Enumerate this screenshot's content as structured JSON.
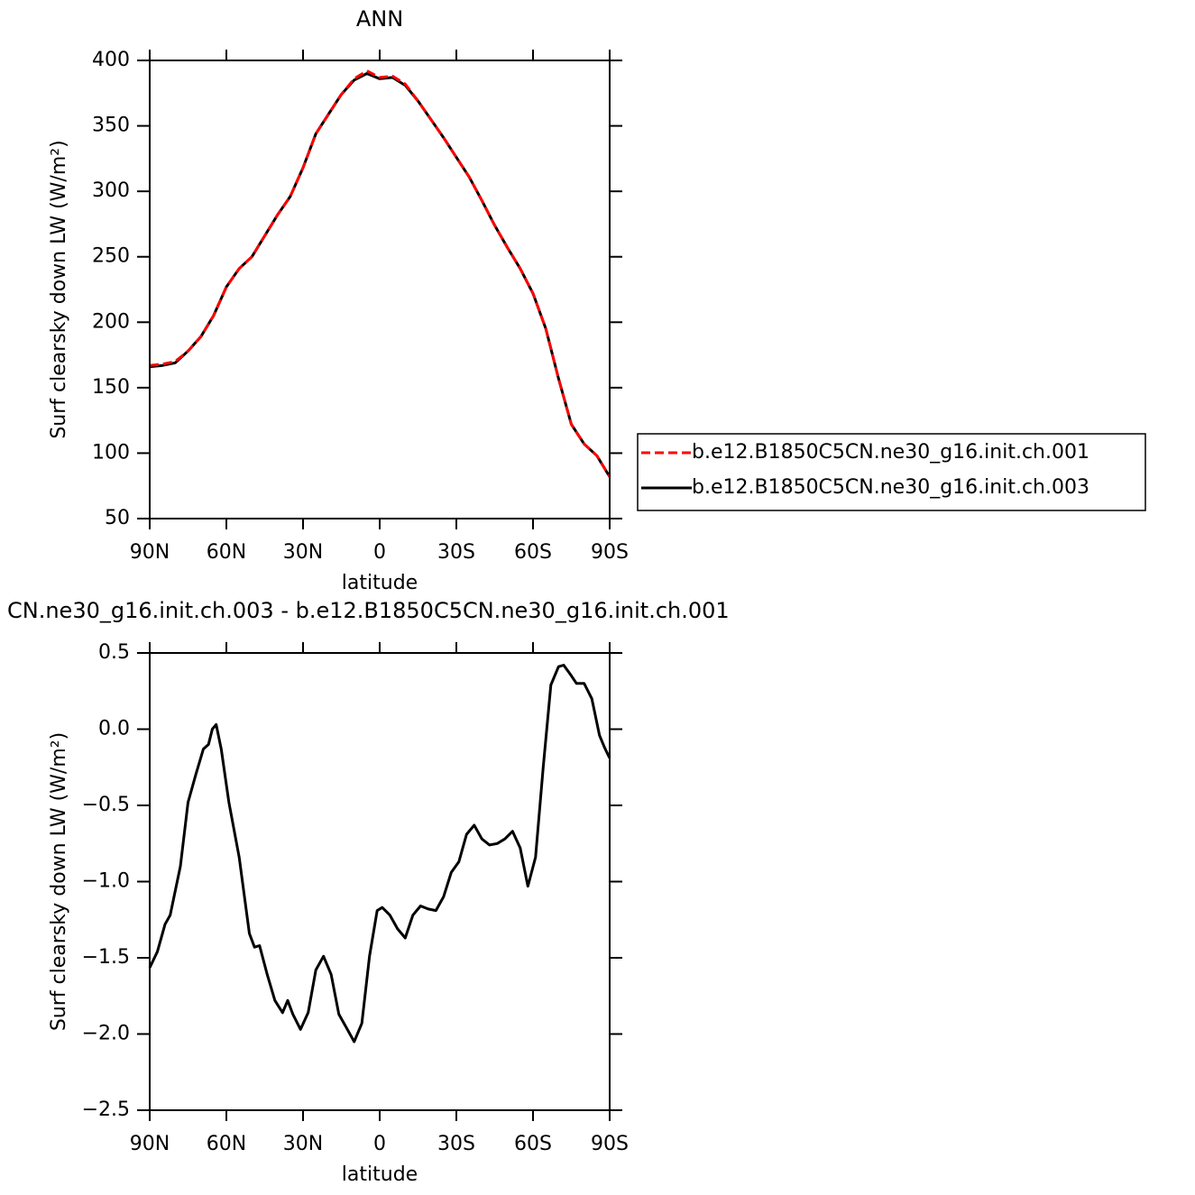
{
  "chart_data": [
    {
      "type": "line",
      "title": "ANN",
      "xlabel": "latitude",
      "ylabel": "Surf clearsky down LW (W/m²)",
      "x": [
        90,
        85,
        80,
        75,
        70,
        65,
        60,
        55,
        50,
        45,
        40,
        35,
        30,
        25,
        20,
        15,
        10,
        5,
        0,
        -5,
        -10,
        -15,
        -20,
        -25,
        -30,
        -35,
        -40,
        -45,
        -50,
        -55,
        -60,
        -65,
        -70,
        -75,
        -80,
        -85,
        -90
      ],
      "series": [
        {
          "name": "b.e12.B1850C5CN.ne30_g16.init.ch.001",
          "color": "#ff0000",
          "style": "dashed",
          "values": [
            167,
            168,
            170,
            178,
            189,
            205,
            227,
            241,
            250,
            266,
            282,
            296,
            318,
            344,
            359,
            374,
            386,
            392,
            387,
            388,
            382,
            369,
            355,
            341,
            326,
            311,
            293,
            274,
            257,
            241,
            222,
            195,
            157,
            122,
            107,
            98,
            82
          ]
        },
        {
          "name": "b.e12.B1850C5CN.ne30_g16.init.ch.003",
          "color": "#000000",
          "style": "solid",
          "values": [
            166,
            167,
            169,
            178,
            189,
            205,
            227,
            241,
            250,
            266,
            282,
            296,
            318,
            344,
            359,
            374,
            385,
            390,
            386,
            387,
            381,
            369,
            355,
            341,
            326,
            311,
            293,
            274,
            257,
            241,
            222,
            195,
            157,
            122,
            107,
            98,
            82
          ]
        }
      ],
      "xlim": [
        90,
        -90
      ],
      "xticks": [
        {
          "value": 90,
          "label": "90N"
        },
        {
          "value": 60,
          "label": "60N"
        },
        {
          "value": 30,
          "label": "30N"
        },
        0,
        {
          "value": -30,
          "label": "30S"
        },
        {
          "value": -60,
          "label": "60S"
        },
        {
          "value": -90,
          "label": "90S"
        }
      ],
      "ylim": [
        50,
        400
      ],
      "yticks": [
        50,
        100,
        150,
        200,
        250,
        300,
        350,
        400
      ]
    },
    {
      "type": "line",
      "title": "CN.ne30_g16.init.ch.003 - b.e12.B1850C5CN.ne30_g16.init.ch.001",
      "xlabel": "latitude",
      "ylabel": "Surf clearsky down LW (W/m²)",
      "x": [
        90,
        87,
        84,
        82,
        78,
        75,
        72,
        69,
        67,
        65.5,
        64,
        62,
        59,
        55,
        51,
        49,
        47,
        44,
        41,
        38,
        36,
        34,
        31,
        28,
        25,
        22,
        19,
        16,
        13,
        10,
        7,
        4,
        1,
        -1,
        -4,
        -7,
        -10,
        -13,
        -16,
        -19,
        -22,
        -25,
        -28,
        -31,
        -34,
        -37,
        -40,
        -43,
        -46,
        -49,
        -52,
        -55,
        -58,
        -61,
        -64,
        -67,
        -70,
        -72,
        -75,
        -77,
        -80,
        -83,
        -86,
        -88,
        -90
      ],
      "values": [
        -1.565,
        -1.46,
        -1.28,
        -1.22,
        -0.9,
        -0.48,
        -0.3,
        -0.13,
        -0.1,
        0.0,
        0.03,
        -0.13,
        -0.48,
        -0.84,
        -1.34,
        -1.43,
        -1.42,
        -1.61,
        -1.78,
        -1.86,
        -1.78,
        -1.87,
        -1.97,
        -1.86,
        -1.58,
        -1.49,
        -1.61,
        -1.87,
        -1.96,
        -2.05,
        -1.93,
        -1.49,
        -1.19,
        -1.17,
        -1.22,
        -1.31,
        -1.37,
        -1.22,
        -1.16,
        -1.18,
        -1.19,
        -1.1,
        -0.94,
        -0.87,
        -0.69,
        -0.63,
        -0.72,
        -0.76,
        -0.75,
        -0.72,
        -0.67,
        -0.78,
        -1.03,
        -0.84,
        -0.25,
        0.29,
        0.41,
        0.42,
        0.35,
        0.3,
        0.3,
        0.2,
        -0.04,
        -0.12,
        -0.19
      ],
      "color": "#000000",
      "xlim": [
        90,
        -90
      ],
      "xticks": [
        {
          "value": 90,
          "label": "90N"
        },
        {
          "value": 60,
          "label": "60N"
        },
        {
          "value": 30,
          "label": "30N"
        },
        0,
        {
          "value": -30,
          "label": "30S"
        },
        {
          "value": -60,
          "label": "60S"
        },
        {
          "value": -90,
          "label": "90S"
        }
      ],
      "ylim": [
        -2.5,
        0.5
      ],
      "yticks": [
        {
          "value": -2.5,
          "label": "−2.5"
        },
        {
          "value": -2,
          "label": "−2.0"
        },
        {
          "value": -1.5,
          "label": "−1.5"
        },
        {
          "value": -1,
          "label": "−1.0"
        },
        {
          "value": -0.5,
          "label": "−0.5"
        },
        {
          "value": 0,
          "label": "0.0"
        },
        0.5
      ]
    }
  ]
}
